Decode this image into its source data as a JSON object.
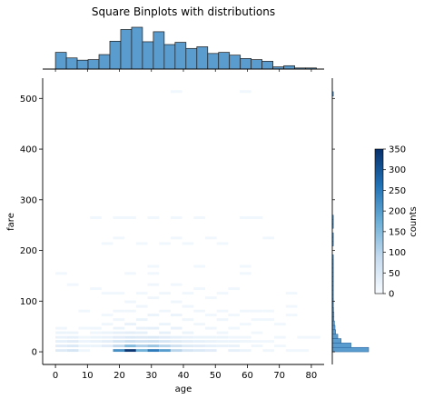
{
  "chart_data": {
    "type": "heatmap",
    "title": "Square Binplots with distributions",
    "xlabel": "age",
    "ylabel": "fare",
    "xlim": [
      -4,
      84
    ],
    "ylim": [
      -25,
      540
    ],
    "xticks": [
      0,
      10,
      20,
      30,
      40,
      50,
      60,
      70,
      80
    ],
    "yticks": [
      0,
      100,
      200,
      300,
      400,
      500
    ],
    "bin_width": {
      "x": 3.6,
      "y": 8.7
    },
    "colormap": [
      "#f7fbff",
      "#c6dbef",
      "#6baed6",
      "#2171b5",
      "#08306b"
    ],
    "colorbar": {
      "label": "counts",
      "range": [
        0,
        350
      ],
      "ticks": [
        0,
        50,
        100,
        150,
        200,
        250,
        300,
        350
      ]
    },
    "cells": [
      [
        0,
        0,
        45
      ],
      [
        0,
        9,
        40
      ],
      [
        0,
        18,
        30
      ],
      [
        0,
        26,
        25
      ],
      [
        0,
        35,
        20
      ],
      [
        0,
        44,
        15
      ],
      [
        0,
        152,
        12
      ],
      [
        3.6,
        0,
        60
      ],
      [
        3.6,
        9,
        50
      ],
      [
        3.6,
        18,
        40
      ],
      [
        3.6,
        26,
        30
      ],
      [
        3.6,
        35,
        20
      ],
      [
        3.6,
        130,
        12
      ],
      [
        7.2,
        0,
        15
      ],
      [
        7.2,
        9,
        20
      ],
      [
        7.2,
        18,
        18
      ],
      [
        7.2,
        26,
        15
      ],
      [
        7.2,
        44,
        12
      ],
      [
        7.2,
        78,
        12
      ],
      [
        10.8,
        9,
        20
      ],
      [
        10.8,
        18,
        25
      ],
      [
        10.8,
        26,
        20
      ],
      [
        10.8,
        35,
        15
      ],
      [
        10.8,
        44,
        15
      ],
      [
        10.8,
        122,
        12
      ],
      [
        10.8,
        262,
        12
      ],
      [
        14.4,
        9,
        40
      ],
      [
        14.4,
        18,
        35
      ],
      [
        14.4,
        26,
        25
      ],
      [
        14.4,
        35,
        20
      ],
      [
        14.4,
        52,
        15
      ],
      [
        14.4,
        70,
        12
      ],
      [
        14.4,
        113,
        12
      ],
      [
        14.4,
        211,
        12
      ],
      [
        18,
        0,
        220
      ],
      [
        18,
        9,
        90
      ],
      [
        18,
        18,
        60
      ],
      [
        18,
        26,
        40
      ],
      [
        18,
        35,
        30
      ],
      [
        18,
        44,
        20
      ],
      [
        18,
        61,
        15
      ],
      [
        18,
        78,
        15
      ],
      [
        18,
        113,
        12
      ],
      [
        18,
        222,
        12
      ],
      [
        18,
        262,
        12
      ],
      [
        21.6,
        0,
        340
      ],
      [
        21.6,
        9,
        150
      ],
      [
        21.6,
        18,
        80
      ],
      [
        21.6,
        26,
        50
      ],
      [
        21.6,
        35,
        35
      ],
      [
        21.6,
        52,
        25
      ],
      [
        21.6,
        78,
        15
      ],
      [
        21.6,
        96,
        15
      ],
      [
        21.6,
        152,
        12
      ],
      [
        21.6,
        262,
        12
      ],
      [
        25.2,
        0,
        170
      ],
      [
        25.2,
        9,
        110
      ],
      [
        25.2,
        18,
        70
      ],
      [
        25.2,
        26,
        45
      ],
      [
        25.2,
        35,
        30
      ],
      [
        25.2,
        44,
        25
      ],
      [
        25.2,
        61,
        20
      ],
      [
        25.2,
        87,
        15
      ],
      [
        25.2,
        113,
        12
      ],
      [
        25.2,
        211,
        12
      ],
      [
        28.8,
        0,
        250
      ],
      [
        28.8,
        9,
        130
      ],
      [
        28.8,
        18,
        75
      ],
      [
        28.8,
        26,
        50
      ],
      [
        28.8,
        44,
        30
      ],
      [
        28.8,
        70,
        20
      ],
      [
        28.8,
        104,
        15
      ],
      [
        28.8,
        130,
        15
      ],
      [
        28.8,
        152,
        12
      ],
      [
        28.8,
        166,
        12
      ],
      [
        28.8,
        262,
        12
      ],
      [
        32.4,
        0,
        200
      ],
      [
        32.4,
        9,
        100
      ],
      [
        32.4,
        18,
        60
      ],
      [
        32.4,
        26,
        40
      ],
      [
        32.4,
        35,
        30
      ],
      [
        32.4,
        52,
        20
      ],
      [
        32.4,
        78,
        15
      ],
      [
        32.4,
        113,
        15
      ],
      [
        32.4,
        211,
        12
      ],
      [
        36,
        0,
        100
      ],
      [
        36,
        9,
        70
      ],
      [
        36,
        18,
        45
      ],
      [
        36,
        26,
        30
      ],
      [
        36,
        44,
        25
      ],
      [
        36,
        70,
        20
      ],
      [
        36,
        96,
        15
      ],
      [
        36,
        130,
        12
      ],
      [
        36,
        222,
        12
      ],
      [
        36,
        262,
        12
      ],
      [
        36,
        511,
        12
      ],
      [
        39.6,
        0,
        60
      ],
      [
        39.6,
        9,
        45
      ],
      [
        39.6,
        18,
        35
      ],
      [
        39.6,
        26,
        25
      ],
      [
        39.6,
        35,
        20
      ],
      [
        39.6,
        61,
        15
      ],
      [
        39.6,
        87,
        15
      ],
      [
        39.6,
        113,
        12
      ],
      [
        39.6,
        211,
        12
      ],
      [
        43.2,
        0,
        50
      ],
      [
        43.2,
        9,
        40
      ],
      [
        43.2,
        18,
        30
      ],
      [
        43.2,
        26,
        20
      ],
      [
        43.2,
        52,
        15
      ],
      [
        43.2,
        78,
        15
      ],
      [
        43.2,
        122,
        12
      ],
      [
        43.2,
        166,
        12
      ],
      [
        43.2,
        262,
        12
      ],
      [
        46.8,
        0,
        40
      ],
      [
        46.8,
        9,
        30
      ],
      [
        46.8,
        18,
        25
      ],
      [
        46.8,
        26,
        20
      ],
      [
        46.8,
        44,
        15
      ],
      [
        46.8,
        70,
        12
      ],
      [
        46.8,
        104,
        12
      ],
      [
        46.8,
        222,
        12
      ],
      [
        50.4,
        9,
        25
      ],
      [
        50.4,
        18,
        20
      ],
      [
        50.4,
        26,
        20
      ],
      [
        50.4,
        35,
        15
      ],
      [
        50.4,
        61,
        15
      ],
      [
        50.4,
        78,
        12
      ],
      [
        50.4,
        113,
        12
      ],
      [
        50.4,
        211,
        12
      ],
      [
        54,
        0,
        30
      ],
      [
        54,
        9,
        25
      ],
      [
        54,
        18,
        20
      ],
      [
        54,
        26,
        15
      ],
      [
        54,
        44,
        12
      ],
      [
        54,
        70,
        12
      ],
      [
        54,
        122,
        12
      ],
      [
        57.6,
        0,
        20
      ],
      [
        57.6,
        18,
        15
      ],
      [
        57.6,
        26,
        15
      ],
      [
        57.6,
        52,
        12
      ],
      [
        57.6,
        78,
        12
      ],
      [
        57.6,
        152,
        12
      ],
      [
        57.6,
        166,
        12
      ],
      [
        57.6,
        262,
        12
      ],
      [
        57.6,
        511,
        12
      ],
      [
        61.2,
        9,
        15
      ],
      [
        61.2,
        18,
        12
      ],
      [
        61.2,
        35,
        12
      ],
      [
        61.2,
        61,
        12
      ],
      [
        61.2,
        78,
        12
      ],
      [
        61.2,
        262,
        12
      ],
      [
        64.8,
        0,
        15
      ],
      [
        64.8,
        18,
        12
      ],
      [
        64.8,
        61,
        12
      ],
      [
        64.8,
        78,
        12
      ],
      [
        64.8,
        222,
        12
      ],
      [
        68.4,
        9,
        12
      ],
      [
        68.4,
        26,
        12
      ],
      [
        68.4,
        52,
        12
      ],
      [
        72,
        0,
        12
      ],
      [
        72,
        70,
        12
      ],
      [
        72,
        87,
        12
      ],
      [
        72,
        113,
        12
      ],
      [
        75.6,
        0,
        12
      ],
      [
        75.6,
        26,
        12
      ],
      [
        79.2,
        26,
        12
      ]
    ],
    "x_marginal_counts": [
      30,
      20,
      16,
      17,
      26,
      50,
      71,
      75,
      49,
      67,
      44,
      48,
      37,
      40,
      28,
      30,
      25,
      19,
      17,
      14,
      4,
      6,
      2,
      2
    ],
    "y_marginal_counts": [
      330,
      170,
      80,
      50,
      30,
      25,
      20,
      15,
      15,
      12,
      10,
      8,
      6,
      5,
      4,
      3,
      2,
      2,
      1,
      1,
      1,
      1,
      0,
      0,
      1,
      1,
      1,
      0,
      1,
      1,
      1,
      0,
      0,
      0,
      0,
      0,
      0,
      0,
      0,
      0,
      0,
      0,
      0,
      0,
      0,
      0,
      0,
      0,
      0,
      0,
      0,
      0,
      0,
      0,
      0,
      0,
      0,
      0,
      1
    ]
  }
}
